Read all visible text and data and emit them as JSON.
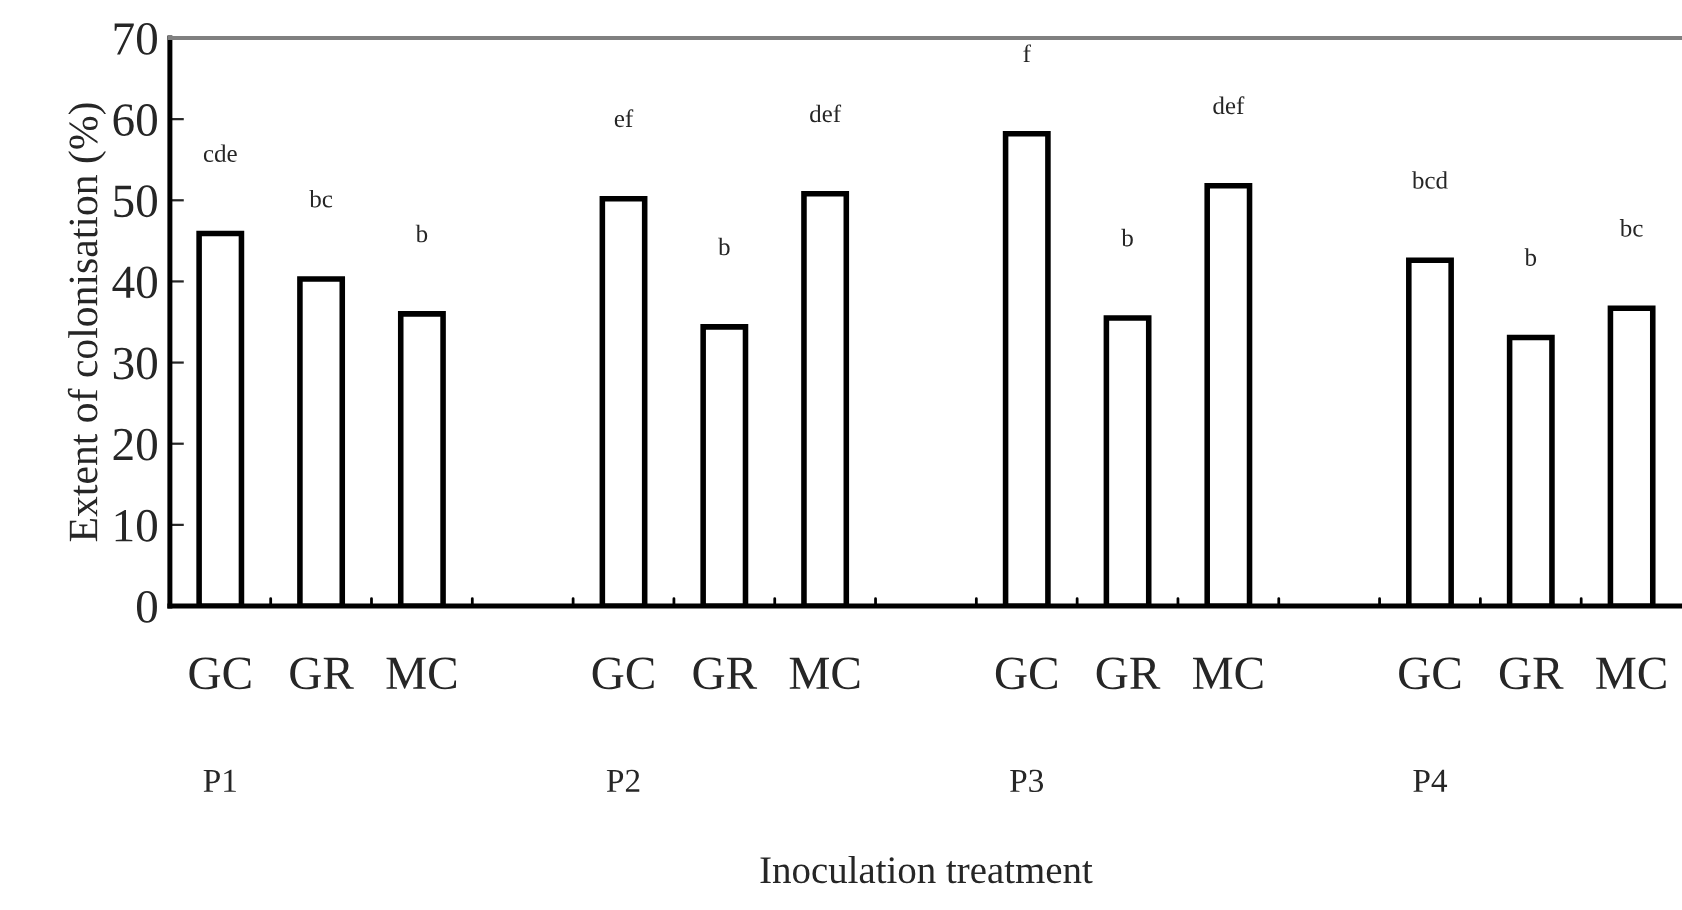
{
  "chart_data": {
    "type": "bar",
    "xlabel": "Inoculation treatment",
    "ylabel": "Extent of colonisation (%)",
    "categories": [
      "GC",
      "GR",
      "MC",
      null,
      "GC",
      "GR",
      "MC",
      null,
      "GC",
      "GR",
      "MC",
      null,
      "GC",
      "GR",
      "MC"
    ],
    "series": [
      {
        "color": "#ffffff",
        "values": [
          45.9,
          40.3,
          36.0,
          null,
          50.2,
          34.4,
          50.8,
          null,
          58.2,
          35.5,
          51.8,
          null,
          42.6,
          33.1,
          36.7
        ]
      }
    ],
    "ylim": [
      0,
      70
    ],
    "yticks": [
      0,
      10,
      20,
      30,
      40,
      50,
      60,
      70
    ],
    "annotations": [
      "cde",
      "bc",
      "b",
      "ef",
      "b",
      "def",
      "f",
      "b",
      "def",
      "bcd",
      "b",
      "bc",
      "P1",
      "P2",
      "P3",
      "P4"
    ],
    "grid": false,
    "legend": false
  }
}
